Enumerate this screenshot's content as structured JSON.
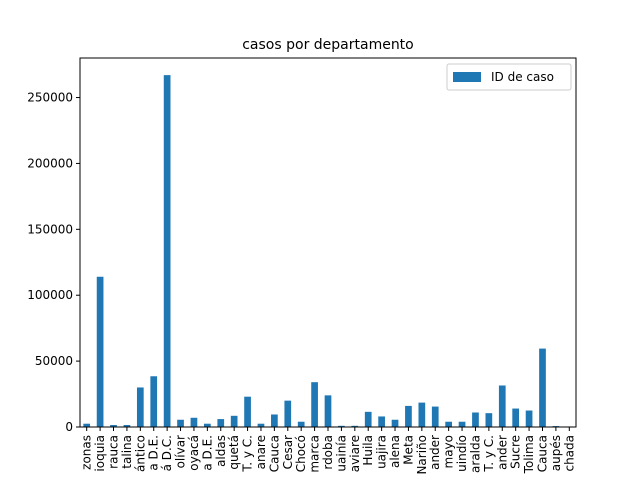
{
  "chart_data": {
    "type": "bar",
    "title": "casos por departamento",
    "xlabel": "",
    "ylabel": "",
    "ylim": [
      0,
      280000
    ],
    "yticks": [
      0,
      50000,
      100000,
      150000,
      200000,
      250000
    ],
    "ytick_labels": [
      "0",
      "50000",
      "100000",
      "150000",
      "200000",
      "250000"
    ],
    "legend_position": "top-right",
    "grid": false,
    "categories": [
      "zonas",
      "ioquia",
      "rauca",
      "talina",
      "ántico",
      "a D.E.",
      "á D.C.",
      "olívar",
      "oyacá",
      "a D.E.",
      "aldas",
      "quetá",
      "T. y C.",
      "anare",
      "Cauca",
      "Cesar",
      "Chocó",
      "marca",
      "rdoba",
      "uainía",
      "aviare",
      "Huila",
      "uajira",
      "alena",
      "Meta",
      "Nariño",
      "ander",
      "mayo",
      "uindío",
      "aralda",
      "T. y C.",
      "ander",
      "Sucre",
      "Tolima",
      "Cauca",
      "aupés",
      "chada"
    ],
    "series": [
      {
        "name": "ID de caso",
        "color": "#1f77b4",
        "values": [
          2500,
          114000,
          1500,
          1500,
          30000,
          38500,
          267000,
          5500,
          7000,
          2500,
          6000,
          8500,
          23000,
          2500,
          9500,
          20000,
          4000,
          34000,
          24000,
          900,
          900,
          11500,
          8000,
          5500,
          16000,
          18500,
          15500,
          4000,
          4000,
          11000,
          10500,
          31500,
          14000,
          12500,
          59500,
          700,
          400
        ]
      }
    ]
  }
}
